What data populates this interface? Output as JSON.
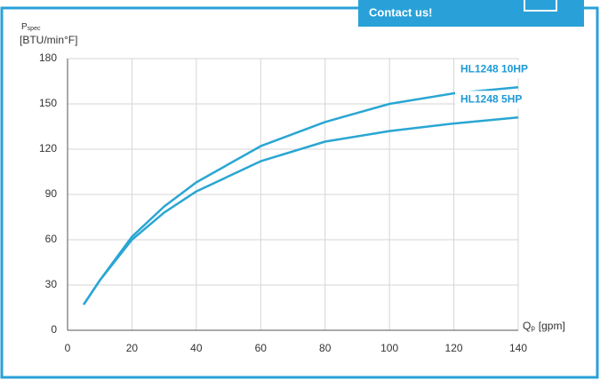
{
  "contact_button": "Contact us!",
  "chart_data": {
    "type": "line",
    "ylabel_symbol": "P",
    "ylabel_subscript": "spec",
    "ylabel_unit": "[BTU/min°F]",
    "xlabel_symbol": "Q",
    "xlabel_subscript": "p",
    "xlabel_unit": "[gpm]",
    "x": [
      5,
      10,
      20,
      30,
      40,
      60,
      80,
      100,
      120,
      140
    ],
    "series": [
      {
        "name": "HL1248 10HP",
        "color": "#2aa6d3",
        "values": [
          17,
          33,
          62,
          82,
          98,
          122,
          138,
          150,
          157,
          161
        ]
      },
      {
        "name": "HL1248 5HP",
        "color": "#2aa6d3",
        "values": [
          17,
          33,
          60,
          78,
          92,
          112,
          125,
          132,
          137,
          141
        ]
      }
    ],
    "xlim": [
      0,
      140
    ],
    "xticks": [
      0,
      20,
      40,
      60,
      80,
      100,
      120,
      140
    ],
    "ylim": [
      0,
      180
    ],
    "yticks": [
      0,
      30,
      60,
      90,
      120,
      150,
      180
    ],
    "grid": true,
    "label_color": "#1e9ad6"
  }
}
